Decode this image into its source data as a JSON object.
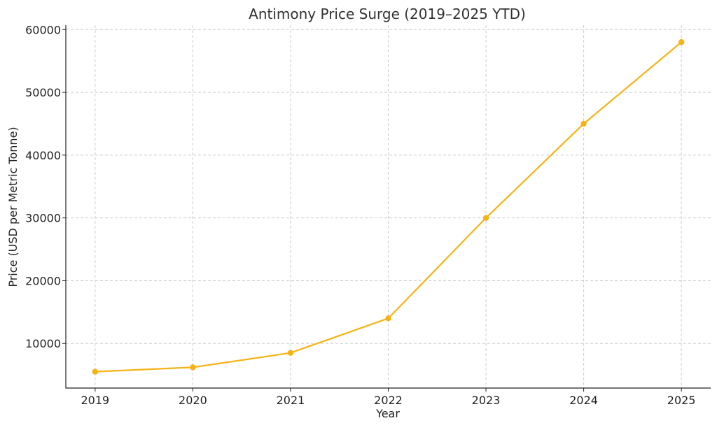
{
  "chart_data": {
    "type": "line",
    "title": "Antimony Price Surge (2019–2025 YTD)",
    "xlabel": "Year",
    "ylabel": "Price (USD per Metric Tonne)",
    "x": [
      "2019",
      "2020",
      "2021",
      "2022",
      "2023",
      "2024",
      "2025"
    ],
    "series": [
      {
        "values": [
          5500,
          6200,
          8500,
          14000,
          30000,
          45000,
          58000
        ],
        "color": "#f5b316"
      }
    ],
    "yticks": [
      10000,
      20000,
      30000,
      40000,
      50000,
      60000
    ],
    "ylim": [
      2900,
      60700
    ],
    "xlim": [
      2018.7,
      2025.3
    ],
    "grid": true,
    "legend": "none"
  }
}
